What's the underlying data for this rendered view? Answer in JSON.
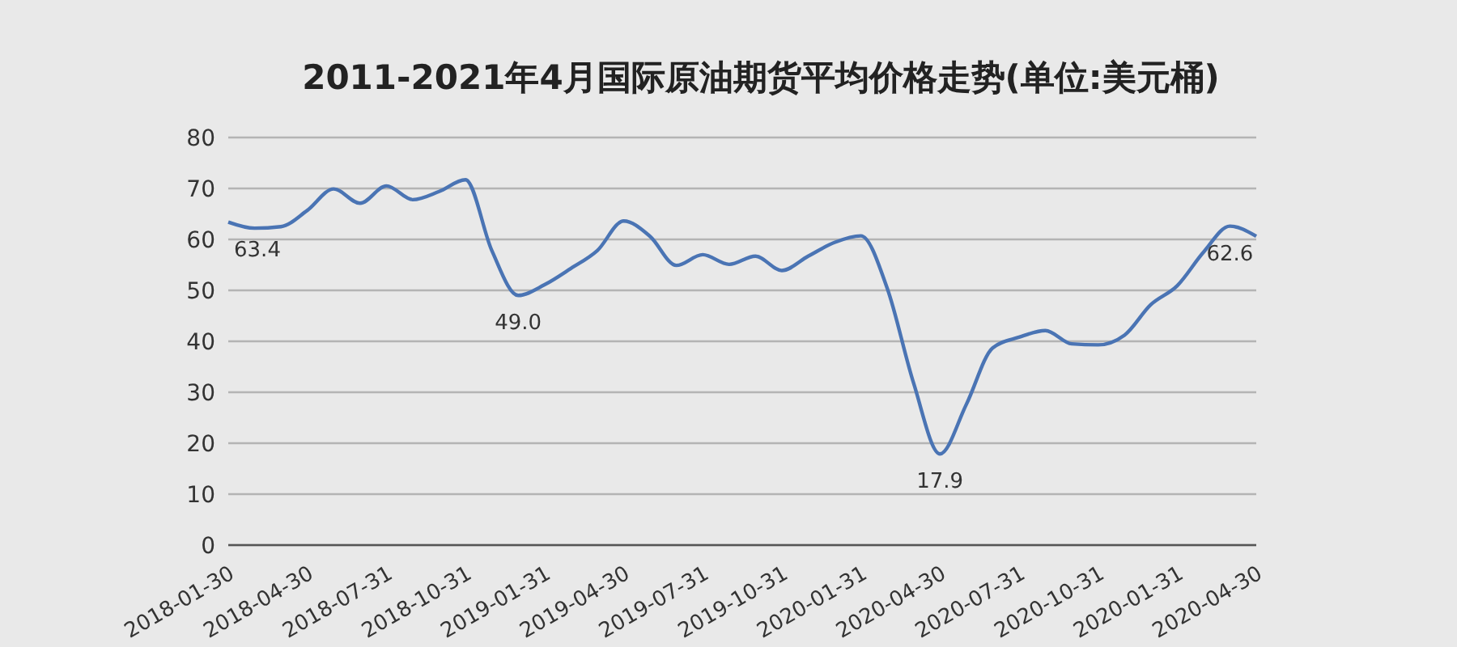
{
  "chart_data": {
    "type": "line",
    "title": "2011-2021年4月国际原油期货平均价格走势(单位:美元桶)",
    "categories": [
      "2018-01-30",
      null,
      null,
      "2018-04-30",
      null,
      null,
      "2018-07-31",
      null,
      null,
      "2018-10-31",
      null,
      null,
      "2019-01-31",
      null,
      null,
      "2019-04-30",
      null,
      null,
      "2019-07-31",
      null,
      null,
      "2019-10-31",
      null,
      null,
      "2020-01-31",
      null,
      null,
      "2020-04-30",
      null,
      null,
      "2020-07-31",
      null,
      null,
      "2020-10-31",
      null,
      null,
      "2020-01-31",
      null,
      null,
      "2020-04-30"
    ],
    "series": [
      {
        "color": "#4a74b4",
        "values": [
          63.4,
          62.2,
          62.5,
          65.7,
          69.9,
          67.1,
          70.5,
          67.8,
          69.4,
          71.7,
          57.8,
          49.0,
          51.1,
          54.3,
          57.8,
          63.6,
          60.6,
          54.9,
          57.0,
          55.1,
          56.7,
          53.9,
          56.7,
          59.4,
          60.7,
          50.4,
          31.8,
          17.9,
          27.6,
          38.7,
          40.8,
          42.1,
          39.5,
          39.3,
          41.2,
          47.2,
          50.9,
          57.5,
          62.6,
          60.6
        ],
        "value_labels": [
          "63.4",
          null,
          null,
          null,
          null,
          null,
          null,
          null,
          null,
          null,
          null,
          "49.0",
          null,
          null,
          null,
          null,
          null,
          null,
          null,
          null,
          null,
          null,
          null,
          null,
          null,
          null,
          null,
          "17.9",
          null,
          null,
          null,
          null,
          null,
          null,
          null,
          null,
          null,
          null,
          "62.6",
          null
        ]
      }
    ],
    "ylim": [
      0,
      80
    ],
    "yticks": [
      0,
      10,
      20,
      30,
      40,
      50,
      60,
      70,
      80
    ],
    "grid": "y",
    "marker": "none"
  }
}
